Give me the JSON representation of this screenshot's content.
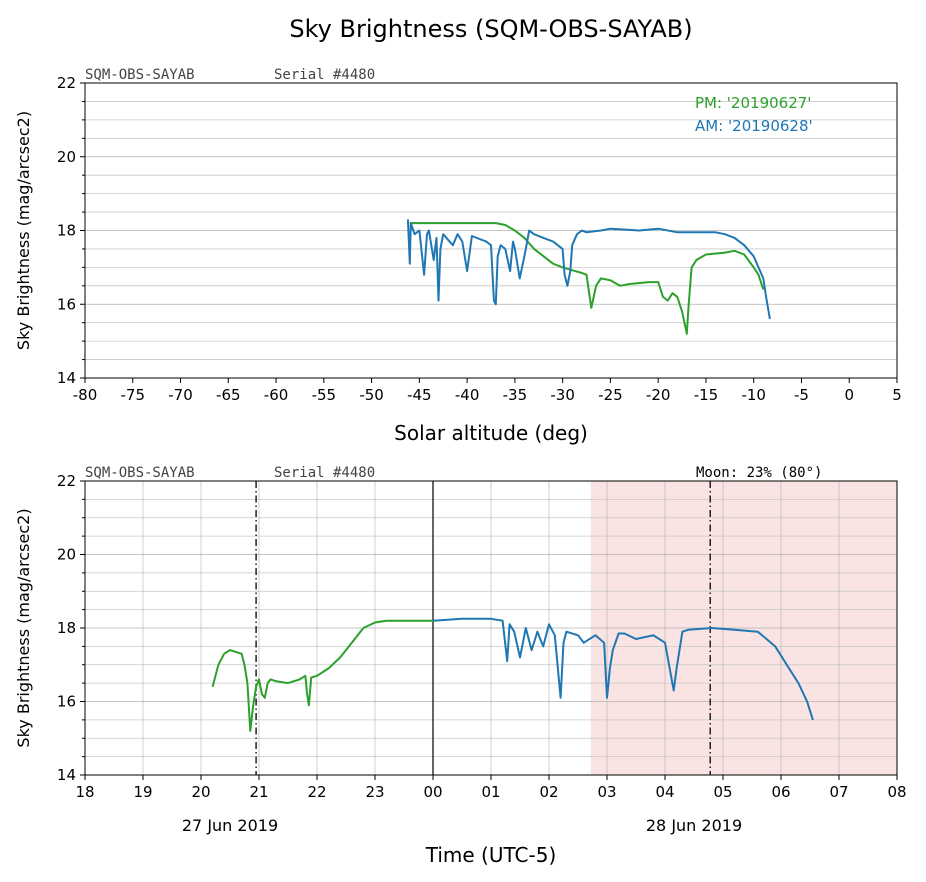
{
  "chart_data": [
    {
      "type": "line",
      "title": "Sky Brightness (SQM-OBS-SAYAB)",
      "header_left": "SQM-OBS-SAYAB",
      "header_serial": "Serial #4480",
      "xlabel": "Solar altitude (deg)",
      "ylabel": "Sky Brightness (mag/arcsec2)",
      "xlim": [
        -80,
        5
      ],
      "ylim": [
        14,
        22
      ],
      "xticks": [
        -80,
        -75,
        -70,
        -65,
        -60,
        -55,
        -50,
        -45,
        -40,
        -35,
        -30,
        -25,
        -20,
        -15,
        -10,
        -5,
        0,
        5
      ],
      "yticks": [
        14,
        16,
        18,
        20,
        22
      ],
      "grid": "horizontal minor",
      "legend_position": "top-right",
      "series": [
        {
          "name": "PM: '20190627'",
          "color": "#2ca02c",
          "x": [
            -46,
            -43,
            -40,
            -37,
            -36,
            -35,
            -34,
            -33,
            -31,
            -30,
            -28,
            -27.5,
            -27,
            -26.5,
            -26,
            -25,
            -24,
            -23,
            -21,
            -20,
            -19.5,
            -19,
            -18.5,
            -18,
            -17.5,
            -17,
            -16.8,
            -16.5,
            -16,
            -15,
            -13,
            -12,
            -11,
            -10,
            -9.5,
            -9
          ],
          "y": [
            18.2,
            18.2,
            18.2,
            18.2,
            18.15,
            18.0,
            17.8,
            17.5,
            17.1,
            17.0,
            16.85,
            16.8,
            15.9,
            16.5,
            16.7,
            16.65,
            16.5,
            16.55,
            16.6,
            16.6,
            16.2,
            16.1,
            16.3,
            16.2,
            15.8,
            15.2,
            16.0,
            17.0,
            17.2,
            17.35,
            17.4,
            17.45,
            17.35,
            17.0,
            16.8,
            16.4
          ]
        },
        {
          "name": "AM: '20190628'",
          "color": "#1f77b4",
          "x": [
            -46.2,
            -46,
            -45.9,
            -45.5,
            -45,
            -44.5,
            -44.2,
            -44,
            -43.5,
            -43.2,
            -43,
            -42.8,
            -42.5,
            -41.5,
            -41,
            -40.5,
            -40,
            -39.5,
            -38,
            -37.5,
            -37.2,
            -37,
            -36.8,
            -36.5,
            -36,
            -35.5,
            -35.2,
            -35,
            -34.5,
            -34,
            -33.5,
            -33,
            -32,
            -31,
            -30,
            -29.8,
            -29.5,
            -29.2,
            -29,
            -28.5,
            -28,
            -27.5,
            -26,
            -25,
            -22,
            -20,
            -18,
            -16,
            -14,
            -13,
            -12,
            -11,
            -10,
            -9.5,
            -9,
            -8.7,
            -8.5,
            -8.3
          ],
          "y": [
            18.3,
            17.1,
            18.2,
            17.9,
            18.0,
            16.8,
            17.9,
            18.0,
            17.2,
            17.8,
            16.1,
            17.5,
            17.9,
            17.6,
            17.9,
            17.7,
            16.9,
            17.85,
            17.7,
            17.6,
            16.1,
            16.0,
            17.3,
            17.6,
            17.5,
            16.9,
            17.7,
            17.5,
            16.7,
            17.3,
            18.0,
            17.9,
            17.8,
            17.7,
            17.5,
            16.8,
            16.5,
            16.9,
            17.6,
            17.9,
            18.0,
            17.95,
            18.0,
            18.05,
            18.0,
            18.05,
            17.95,
            17.95,
            17.95,
            17.9,
            17.8,
            17.6,
            17.3,
            17.0,
            16.7,
            16.2,
            15.9,
            15.6
          ]
        }
      ]
    },
    {
      "type": "line",
      "header_left": "SQM-OBS-SAYAB",
      "header_serial": "Serial #4480",
      "moon_label": "Moon: 23% (80°)",
      "xlabel": "Time (UTC-5)",
      "ylabel": "Sky Brightness (mag/arcsec2)",
      "xlim_hours": [
        18,
        32
      ],
      "ylim": [
        14,
        22
      ],
      "xticks": [
        "18",
        "19",
        "20",
        "21",
        "22",
        "23",
        "00",
        "01",
        "02",
        "03",
        "04",
        "05",
        "06",
        "07",
        "08"
      ],
      "yticks": [
        14,
        16,
        18,
        20,
        22
      ],
      "date_labels": [
        {
          "label": "27 Jun 2019",
          "at_hour": 20.5
        },
        {
          "label": "28 Jun 2019",
          "at_hour": 28.5
        }
      ],
      "midnight_hour": 24,
      "twilight_lines_hours": [
        20.95,
        28.78
      ],
      "shaded_region_hours": [
        26.72,
        32
      ],
      "shade_color": "#f9e3e3",
      "grid": "both",
      "series": [
        {
          "name": "PM",
          "color": "#2ca02c",
          "x": [
            20.2,
            20.3,
            20.4,
            20.5,
            20.6,
            20.7,
            20.75,
            20.8,
            20.85,
            20.9,
            20.95,
            21.0,
            21.05,
            21.1,
            21.15,
            21.2,
            21.3,
            21.5,
            21.7,
            21.8,
            21.83,
            21.86,
            21.9,
            22.0,
            22.2,
            22.4,
            22.6,
            22.8,
            23.0,
            23.2,
            23.5,
            24.0
          ],
          "y": [
            16.4,
            17.0,
            17.3,
            17.4,
            17.35,
            17.3,
            17.0,
            16.5,
            15.2,
            15.9,
            16.4,
            16.6,
            16.2,
            16.1,
            16.5,
            16.6,
            16.55,
            16.5,
            16.6,
            16.7,
            16.2,
            15.9,
            16.65,
            16.7,
            16.9,
            17.2,
            17.6,
            18.0,
            18.15,
            18.2,
            18.2,
            18.2
          ]
        },
        {
          "name": "AM",
          "color": "#1f77b4",
          "x": [
            24.0,
            24.5,
            25.0,
            25.2,
            25.28,
            25.32,
            25.4,
            25.5,
            25.6,
            25.7,
            25.8,
            25.9,
            26.0,
            26.1,
            26.2,
            26.25,
            26.3,
            26.5,
            26.6,
            26.8,
            26.95,
            27.0,
            27.05,
            27.1,
            27.2,
            27.3,
            27.5,
            27.8,
            28.0,
            28.15,
            28.2,
            28.3,
            28.4,
            28.8,
            29.2,
            29.6,
            29.9,
            30.1,
            30.3,
            30.45,
            30.55
          ],
          "y": [
            18.2,
            18.25,
            18.25,
            18.2,
            17.1,
            18.1,
            17.9,
            17.2,
            18.0,
            17.4,
            17.9,
            17.5,
            18.1,
            17.8,
            16.1,
            17.6,
            17.9,
            17.8,
            17.6,
            17.8,
            17.6,
            16.1,
            16.9,
            17.4,
            17.85,
            17.85,
            17.7,
            17.8,
            17.6,
            16.3,
            16.9,
            17.9,
            17.95,
            18.0,
            17.95,
            17.9,
            17.5,
            17.0,
            16.5,
            16.0,
            15.5
          ]
        }
      ]
    }
  ]
}
